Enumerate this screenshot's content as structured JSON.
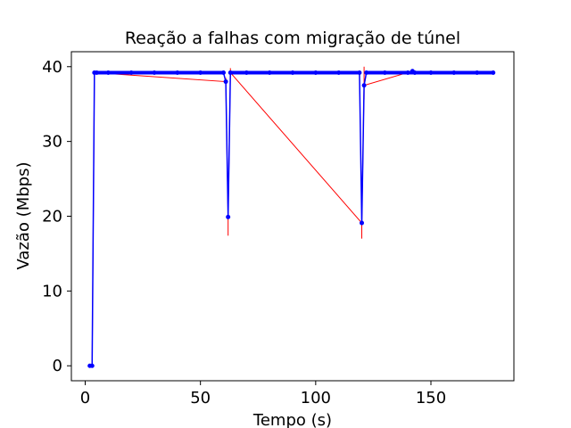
{
  "chart_data": {
    "type": "line",
    "title": "Reação a falhas com migração de túnel",
    "xlabel": "Tempo (s)",
    "ylabel": "Vazão (Mbps)",
    "xlim": [
      -6,
      186
    ],
    "ylim": [
      -2,
      42
    ],
    "xticks": [
      0,
      50,
      100,
      150
    ],
    "yticks": [
      0,
      10,
      20,
      30,
      40
    ],
    "xtick_labels": [
      "0",
      "50",
      "100",
      "150"
    ],
    "ytick_labels": [
      "0",
      "10",
      "20",
      "30",
      "40"
    ],
    "grid": false,
    "legend": "none",
    "series": [
      {
        "style": "error-bars",
        "color": "#ff0000",
        "points": [
          {
            "x": 2,
            "y": 0.0,
            "low": 0.0,
            "high": 0.0
          },
          {
            "x": 3,
            "y": 0.0,
            "low": 0.0,
            "high": 0.0
          },
          {
            "x": 4,
            "y": 39.2,
            "low": 39.0,
            "high": 39.4
          },
          {
            "x": 61,
            "y": 38.0,
            "low": 37.5,
            "high": 38.5
          },
          {
            "x": 62,
            "y": 19.9,
            "low": 17.4,
            "high": 22.4
          },
          {
            "x": 63,
            "y": 39.2,
            "low": 38.6,
            "high": 39.8
          },
          {
            "x": 120,
            "y": 19.1,
            "low": 17.0,
            "high": 21.2
          },
          {
            "x": 121,
            "y": 37.5,
            "low": 35.6,
            "high": 40.0
          },
          {
            "x": 142,
            "y": 39.4,
            "low": 39.3,
            "high": 39.6
          }
        ]
      },
      {
        "style": "line-markers",
        "color": "#0000ff",
        "x": [
          2,
          3,
          4,
          5,
          10,
          20,
          30,
          40,
          50,
          60,
          61,
          62,
          63,
          70,
          80,
          90,
          100,
          110,
          119,
          120,
          121,
          122,
          130,
          140,
          142,
          143,
          150,
          160,
          170,
          177
        ],
        "y": [
          0.0,
          0.0,
          39.2,
          39.2,
          39.2,
          39.2,
          39.2,
          39.2,
          39.2,
          39.2,
          38.0,
          19.9,
          39.2,
          39.2,
          39.2,
          39.2,
          39.2,
          39.2,
          39.2,
          19.1,
          37.5,
          39.2,
          39.2,
          39.2,
          39.4,
          39.2,
          39.2,
          39.2,
          39.2,
          39.2
        ],
        "dense_segments": [
          [
            4,
            60
          ],
          [
            63,
            119
          ],
          [
            122,
            177
          ]
        ]
      }
    ]
  }
}
